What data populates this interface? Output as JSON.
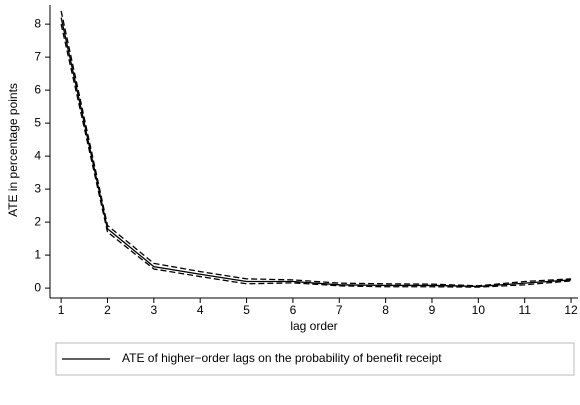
{
  "chart_data": {
    "type": "line",
    "xlabel": "lag order",
    "ylabel": "ATE in percentage points",
    "x": [
      1,
      2,
      3,
      4,
      5,
      6,
      7,
      8,
      9,
      10,
      11,
      12
    ],
    "series": [
      {
        "name": "ATE of higher−order lags on the probability of benefit receipt",
        "color": "#000000",
        "dashed": false,
        "values": [
          8.2,
          1.8,
          0.65,
          0.42,
          0.2,
          0.2,
          0.1,
          0.08,
          0.08,
          0.05,
          0.15,
          0.25
        ]
      },
      {
        "color": "#000000",
        "dashed": true,
        "values": [
          8.4,
          1.9,
          0.75,
          0.5,
          0.28,
          0.25,
          0.15,
          0.13,
          0.12,
          0.07,
          0.2,
          0.28
        ]
      },
      {
        "color": "#000000",
        "dashed": true,
        "values": [
          8.0,
          1.7,
          0.58,
          0.35,
          0.13,
          0.16,
          0.07,
          0.04,
          0.04,
          0.03,
          0.1,
          0.22
        ]
      }
    ],
    "xlim": [
      0.76,
      12.15
    ],
    "xticks": [
      1,
      2,
      3,
      4,
      5,
      6,
      7,
      8,
      9,
      10,
      11,
      12
    ],
    "ylim": [
      -0.3,
      8.58
    ],
    "yticks": [
      0,
      1,
      2,
      3,
      4,
      5,
      6,
      7,
      8
    ],
    "grid": false
  }
}
